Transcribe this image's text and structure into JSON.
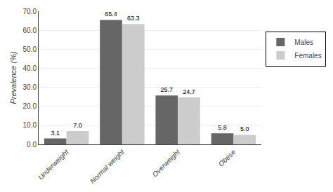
{
  "chart_data": {
    "type": "bar",
    "categories": [
      "Underweight",
      "Normal weight",
      "Overweight",
      "Obese"
    ],
    "series": [
      {
        "name": "Males",
        "color": "#666666",
        "values": [
          3.1,
          65.4,
          25.7,
          5.8
        ],
        "value_labels": [
          "3.1",
          "65.4",
          "25.7",
          "5.8"
        ]
      },
      {
        "name": "Females",
        "color": "#cccccc",
        "values": [
          7.0,
          63.3,
          24.7,
          5.0
        ],
        "value_labels": [
          "7.0",
          "63.3",
          "24.7",
          "5.0"
        ]
      }
    ],
    "ylabel": "Prevalence (%)",
    "ylim": [
      0,
      70
    ],
    "yticks": [
      {
        "value": 0,
        "label": "0.0"
      },
      {
        "value": 10,
        "label": "10.0"
      },
      {
        "value": 20,
        "label": "20.0"
      },
      {
        "value": 30,
        "label": "30.0"
      },
      {
        "value": 40,
        "label": "40.0"
      },
      {
        "value": 50,
        "label": "50.0"
      },
      {
        "value": 60,
        "label": "60.0"
      },
      {
        "value": 70,
        "label": "70.0"
      }
    ],
    "grid": true,
    "legend": "right",
    "data_labels": true
  }
}
